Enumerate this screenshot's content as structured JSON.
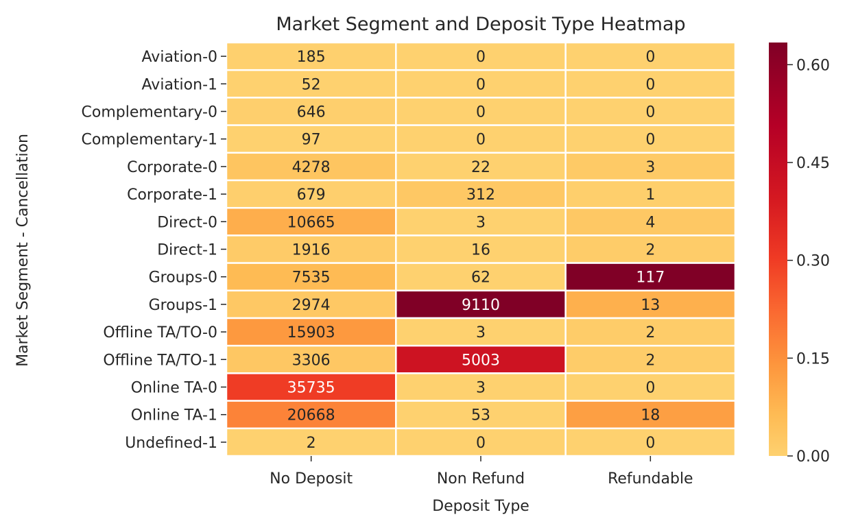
{
  "chart_data": {
    "type": "heatmap",
    "title": "Market Segment and Deposit Type Heatmap",
    "xlabel": "Deposit Type",
    "ylabel": "Market Segment - Cancellation",
    "columns": [
      "No Deposit",
      "Non Refund",
      "Refundable"
    ],
    "rows": [
      "Aviation-0",
      "Aviation-1",
      "Complementary-0",
      "Complementary-1",
      "Corporate-0",
      "Corporate-1",
      "Direct-0",
      "Direct-1",
      "Groups-0",
      "Groups-1",
      "Offline TA/TO-0",
      "Offline TA/TO-1",
      "Online TA-0",
      "Online TA-1",
      "Undefined-1"
    ],
    "values": [
      [
        185,
        0,
        0
      ],
      [
        52,
        0,
        0
      ],
      [
        646,
        0,
        0
      ],
      [
        97,
        0,
        0
      ],
      [
        4278,
        22,
        3
      ],
      [
        679,
        312,
        1
      ],
      [
        10665,
        3,
        4
      ],
      [
        1916,
        16,
        2
      ],
      [
        7535,
        62,
        117
      ],
      [
        2974,
        9110,
        13
      ],
      [
        15903,
        3,
        2
      ],
      [
        3306,
        5003,
        2
      ],
      [
        35735,
        3,
        0
      ],
      [
        20668,
        53,
        18
      ],
      [
        2,
        0,
        0
      ]
    ],
    "normalized": [
      [
        0.0015,
        0,
        0
      ],
      [
        0.0004,
        0,
        0
      ],
      [
        0.0054,
        0,
        0
      ],
      [
        0.0008,
        0,
        0
      ],
      [
        0.036,
        0.0002,
        0.02
      ],
      [
        0.0057,
        0.0263,
        0.0067
      ],
      [
        0.09,
        0.0,
        0.0267
      ],
      [
        0.016,
        0.0001,
        0.0133
      ],
      [
        0.063,
        0.0005,
        0.78
      ],
      [
        0.025,
        0.768,
        0.087
      ],
      [
        0.134,
        0.0,
        0.0133
      ],
      [
        0.028,
        0.422,
        0.0133
      ],
      [
        0.301,
        0.0,
        0
      ],
      [
        0.174,
        0.0004,
        0.12
      ],
      [
        0.0,
        0,
        0
      ]
    ],
    "colorbar": {
      "cmap": "YlOrRd (truncated)",
      "vmin": 0.0,
      "vmax": 0.634,
      "ticks": [
        "0.00",
        "0.15",
        "0.30",
        "0.45",
        "0.60"
      ],
      "tick_values": [
        0.0,
        0.15,
        0.3,
        0.45,
        0.6
      ]
    },
    "grid": true
  },
  "colors": {
    "cell_border": "#ffffff",
    "text_dark": "#262626",
    "text_light": "#ffffff"
  }
}
